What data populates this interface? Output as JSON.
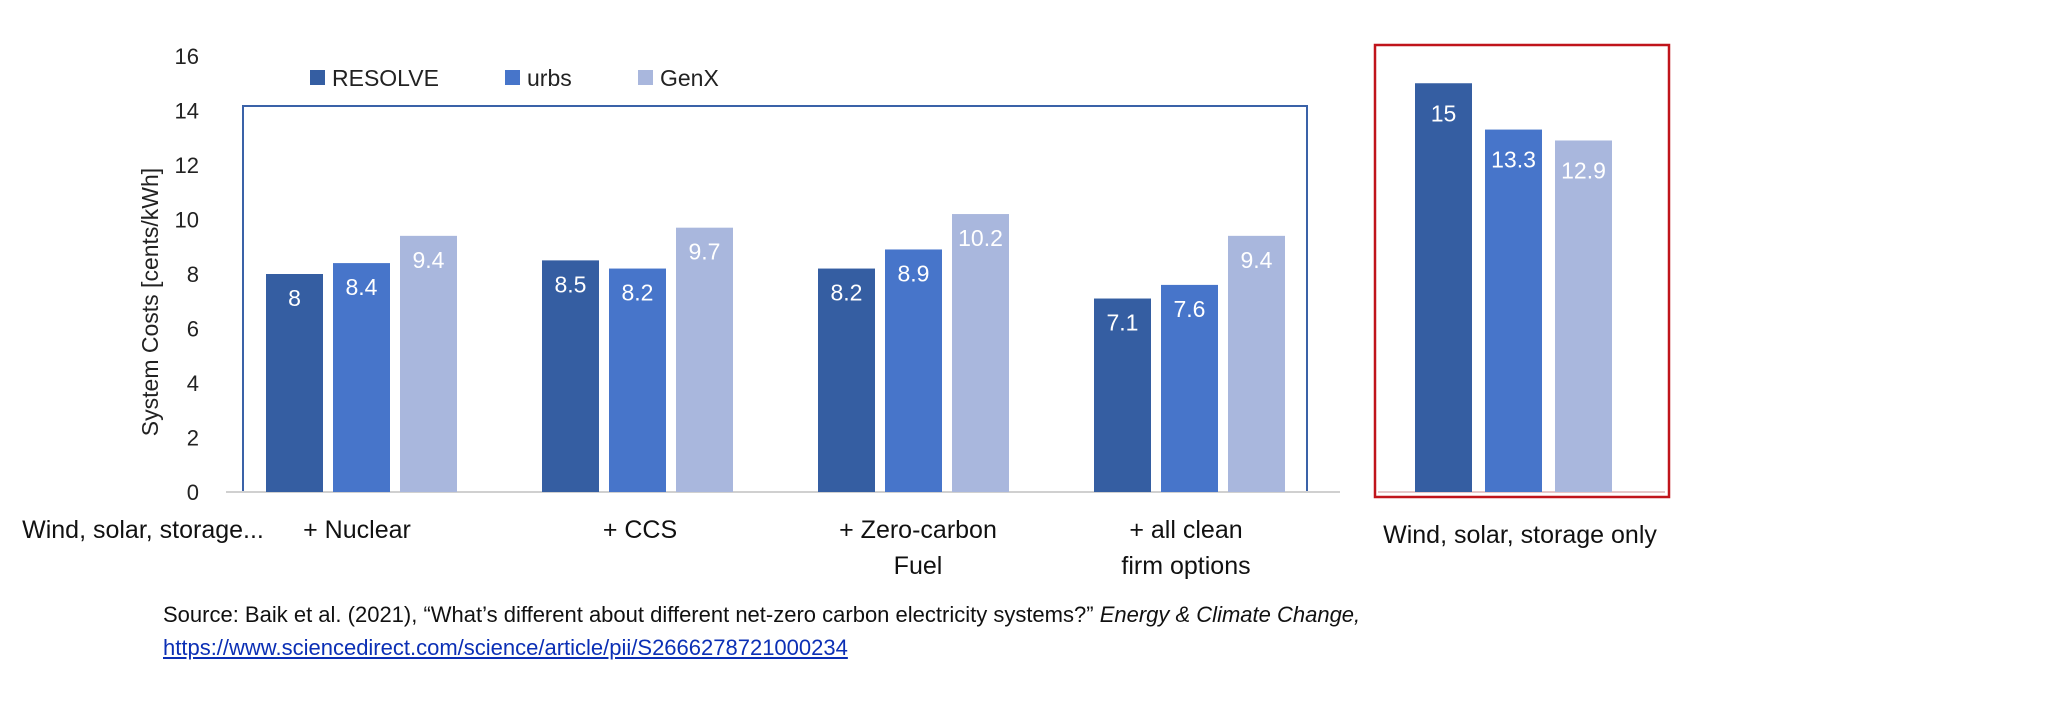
{
  "chart_data": [
    {
      "type": "bar",
      "ylabel": "System Costs [cents/kWh]",
      "ylim": [
        0,
        16
      ],
      "yticks": [
        0,
        2,
        4,
        6,
        8,
        10,
        12,
        14,
        16
      ],
      "legend": {
        "placement": "top-left",
        "entries": [
          "RESOLVE",
          "urbs",
          "GenX"
        ]
      },
      "categories": [
        {
          "label": "+ Nuclear",
          "lines": [
            "+ Nuclear"
          ]
        },
        {
          "label": "+ CCS",
          "lines": [
            "+ CCS"
          ]
        },
        {
          "label": "+ Zero-carbon Fuel",
          "lines": [
            "+ Zero-carbon",
            "Fuel"
          ]
        },
        {
          "label": "+ all clean firm options",
          "lines": [
            "+ all clean",
            "firm options"
          ]
        }
      ],
      "group_prefix_label": "Wind, solar, storage...",
      "series": [
        {
          "name": "RESOLVE",
          "color": "#355ea2",
          "values": [
            8,
            8.5,
            8.2,
            7.1
          ],
          "labels": [
            "8",
            "8.5",
            "8.2",
            "7.1"
          ]
        },
        {
          "name": "urbs",
          "color": "#4775ca",
          "values": [
            8.4,
            8.2,
            8.9,
            7.6
          ],
          "labels": [
            "8.4",
            "8.2",
            "8.9",
            "7.6"
          ]
        },
        {
          "name": "GenX",
          "color": "#a9b7dd",
          "values": [
            9.4,
            9.7,
            10.2,
            9.4
          ],
          "labels": [
            "9.4",
            "9.7",
            "10.2",
            "9.4"
          ]
        }
      ]
    },
    {
      "type": "bar",
      "categories": [
        "Wind, solar, storage only"
      ],
      "highlight_border_color": "#c0141b",
      "series": [
        {
          "name": "RESOLVE",
          "color": "#355ea2",
          "values": [
            15
          ],
          "labels": [
            "15"
          ]
        },
        {
          "name": "urbs",
          "color": "#4775ca",
          "values": [
            13.3
          ],
          "labels": [
            "13.3"
          ]
        },
        {
          "name": "GenX",
          "color": "#a9b7dd",
          "values": [
            12.9
          ],
          "labels": [
            "12.9"
          ]
        }
      ]
    }
  ],
  "source": {
    "prefix": "Source: Baik et al. (2021), “What’s different about different net-zero carbon electricity systems?”",
    "journal": "Energy & Climate Change,",
    "link": "https://www.sciencedirect.com/science/article/pii/S2666278721000234"
  }
}
